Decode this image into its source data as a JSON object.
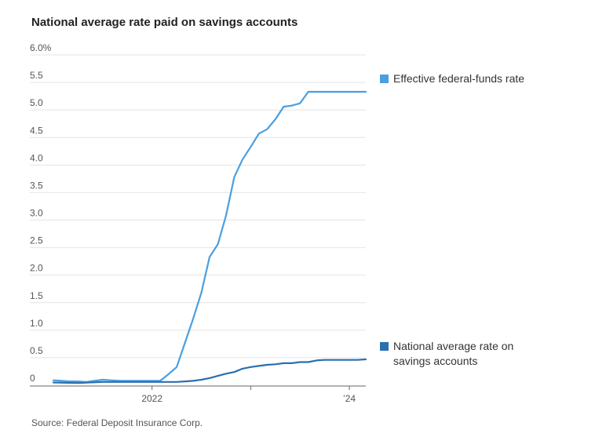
{
  "title": "National average rate paid on savings accounts",
  "source": "Source: Federal Deposit Insurance Corp.",
  "colors": {
    "fed_funds": "#4a9fe0",
    "savings": "#2a6fb0",
    "grid": "#e4e4e4",
    "axis": "#666666"
  },
  "chart_data": {
    "type": "line",
    "title": "National average rate paid on savings accounts",
    "xlabel": "",
    "ylabel": "",
    "ylim": [
      0,
      6.0
    ],
    "xlim": [
      "2021-01",
      "2024-03"
    ],
    "y_ticks": [
      "6.0%",
      "5.5",
      "5.0",
      "4.5",
      "4.0",
      "3.5",
      "3.0",
      "2.5",
      "2.0",
      "1.5",
      "1.0",
      "0.5",
      "0"
    ],
    "y_tick_values": [
      6.0,
      5.5,
      5.0,
      4.5,
      4.0,
      3.5,
      3.0,
      2.5,
      2.0,
      1.5,
      1.0,
      0.5,
      0
    ],
    "x_ticks": [
      {
        "label": "2022",
        "date": "2022-01"
      },
      {
        "label": "",
        "date": "2023-01"
      },
      {
        "label": "’24",
        "date": "2024-01"
      }
    ],
    "grid": true,
    "legend_placement": "right",
    "series": [
      {
        "name": "Effective federal-funds rate",
        "color": "#4a9fe0",
        "points": [
          [
            "2021-01",
            0.09
          ],
          [
            "2021-02",
            0.08
          ],
          [
            "2021-03",
            0.07
          ],
          [
            "2021-04",
            0.07
          ],
          [
            "2021-05",
            0.06
          ],
          [
            "2021-06",
            0.08
          ],
          [
            "2021-07",
            0.1
          ],
          [
            "2021-08",
            0.09
          ],
          [
            "2021-09",
            0.08
          ],
          [
            "2021-10",
            0.08
          ],
          [
            "2021-11",
            0.08
          ],
          [
            "2021-12",
            0.08
          ],
          [
            "2022-01",
            0.08
          ],
          [
            "2022-02",
            0.08
          ],
          [
            "2022-03",
            0.2
          ],
          [
            "2022-04",
            0.33
          ],
          [
            "2022-05",
            0.77
          ],
          [
            "2022-06",
            1.21
          ],
          [
            "2022-07",
            1.68
          ],
          [
            "2022-08",
            2.33
          ],
          [
            "2022-09",
            2.56
          ],
          [
            "2022-10",
            3.08
          ],
          [
            "2022-11",
            3.78
          ],
          [
            "2022-12",
            4.1
          ],
          [
            "2023-01",
            4.33
          ],
          [
            "2023-02",
            4.57
          ],
          [
            "2023-03",
            4.65
          ],
          [
            "2023-04",
            4.83
          ],
          [
            "2023-05",
            5.06
          ],
          [
            "2023-06",
            5.08
          ],
          [
            "2023-07",
            5.12
          ],
          [
            "2023-08",
            5.33
          ],
          [
            "2023-09",
            5.33
          ],
          [
            "2023-10",
            5.33
          ],
          [
            "2023-11",
            5.33
          ],
          [
            "2023-12",
            5.33
          ],
          [
            "2024-01",
            5.33
          ],
          [
            "2024-02",
            5.33
          ],
          [
            "2024-03",
            5.33
          ]
        ]
      },
      {
        "name": "National average rate on savings accounts",
        "color": "#2a6fb0",
        "points": [
          [
            "2021-01",
            0.05
          ],
          [
            "2021-04",
            0.04
          ],
          [
            "2021-07",
            0.06
          ],
          [
            "2021-10",
            0.06
          ],
          [
            "2022-01",
            0.06
          ],
          [
            "2022-04",
            0.06
          ],
          [
            "2022-05",
            0.07
          ],
          [
            "2022-06",
            0.08
          ],
          [
            "2022-07",
            0.1
          ],
          [
            "2022-08",
            0.13
          ],
          [
            "2022-09",
            0.17
          ],
          [
            "2022-10",
            0.21
          ],
          [
            "2022-11",
            0.24
          ],
          [
            "2022-12",
            0.3
          ],
          [
            "2023-01",
            0.33
          ],
          [
            "2023-02",
            0.35
          ],
          [
            "2023-03",
            0.37
          ],
          [
            "2023-04",
            0.38
          ],
          [
            "2023-05",
            0.4
          ],
          [
            "2023-06",
            0.4
          ],
          [
            "2023-07",
            0.42
          ],
          [
            "2023-08",
            0.42
          ],
          [
            "2023-09",
            0.45
          ],
          [
            "2023-10",
            0.46
          ],
          [
            "2023-11",
            0.46
          ],
          [
            "2023-12",
            0.46
          ],
          [
            "2024-01",
            0.46
          ],
          [
            "2024-02",
            0.46
          ],
          [
            "2024-03",
            0.47
          ]
        ]
      }
    ]
  }
}
